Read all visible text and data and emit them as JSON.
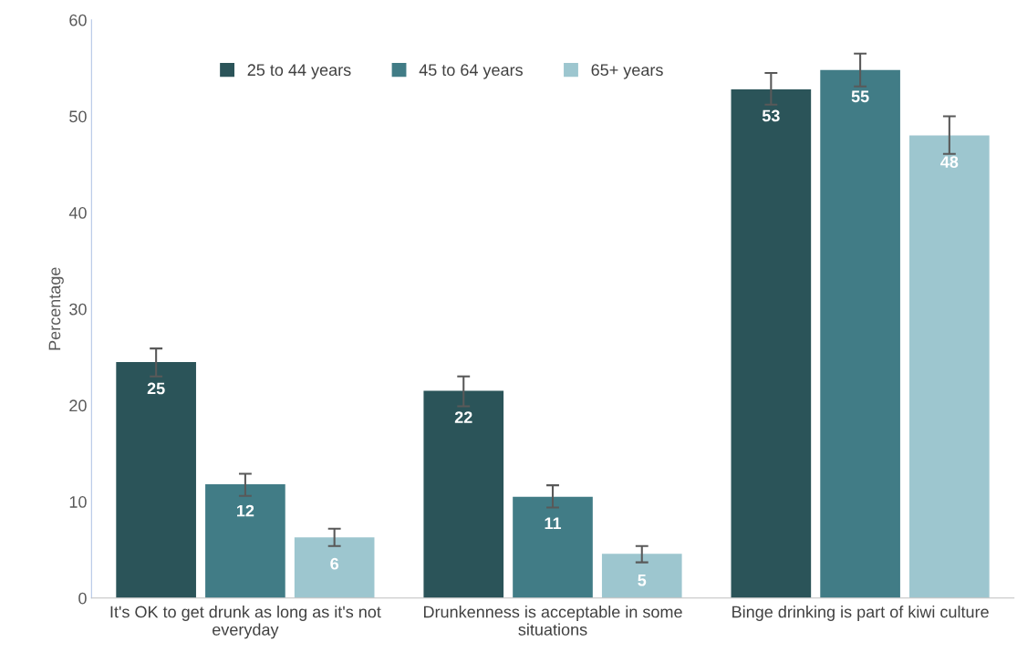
{
  "chart_data": {
    "type": "bar",
    "ylabel": "Percentage",
    "categories": [
      "It's OK to get drunk as long as it's not everyday",
      "Drunkenness is acceptable in some situations",
      "Binge drinking is part of kiwi culture"
    ],
    "series": [
      {
        "name": "25 to 44 years",
        "color": "#2b5459",
        "values": [
          24.5,
          21.5,
          52.8
        ],
        "value_labels": [
          "25",
          "22",
          "53"
        ],
        "errors": [
          [
            23.0,
            25.9
          ],
          [
            19.9,
            23.0
          ],
          [
            51.2,
            54.5
          ]
        ]
      },
      {
        "name": "45 to 64 years",
        "color": "#417c86",
        "values": [
          11.8,
          10.5,
          54.8
        ],
        "value_labels": [
          "12",
          "11",
          "55"
        ],
        "errors": [
          [
            10.6,
            12.9
          ],
          [
            9.4,
            11.7
          ],
          [
            53.1,
            56.5
          ]
        ]
      },
      {
        "name": "65+ years",
        "color": "#9dc6cf",
        "values": [
          6.3,
          4.6,
          48.0
        ],
        "value_labels": [
          "6",
          "5",
          "48"
        ],
        "errors": [
          [
            5.4,
            7.2
          ],
          [
            3.7,
            5.4
          ],
          [
            46.1,
            50.0
          ]
        ]
      }
    ],
    "ylim": [
      0,
      60
    ],
    "yticks": [
      0,
      10,
      20,
      30,
      40,
      50,
      60
    ],
    "grid": false,
    "legend": "top"
  }
}
